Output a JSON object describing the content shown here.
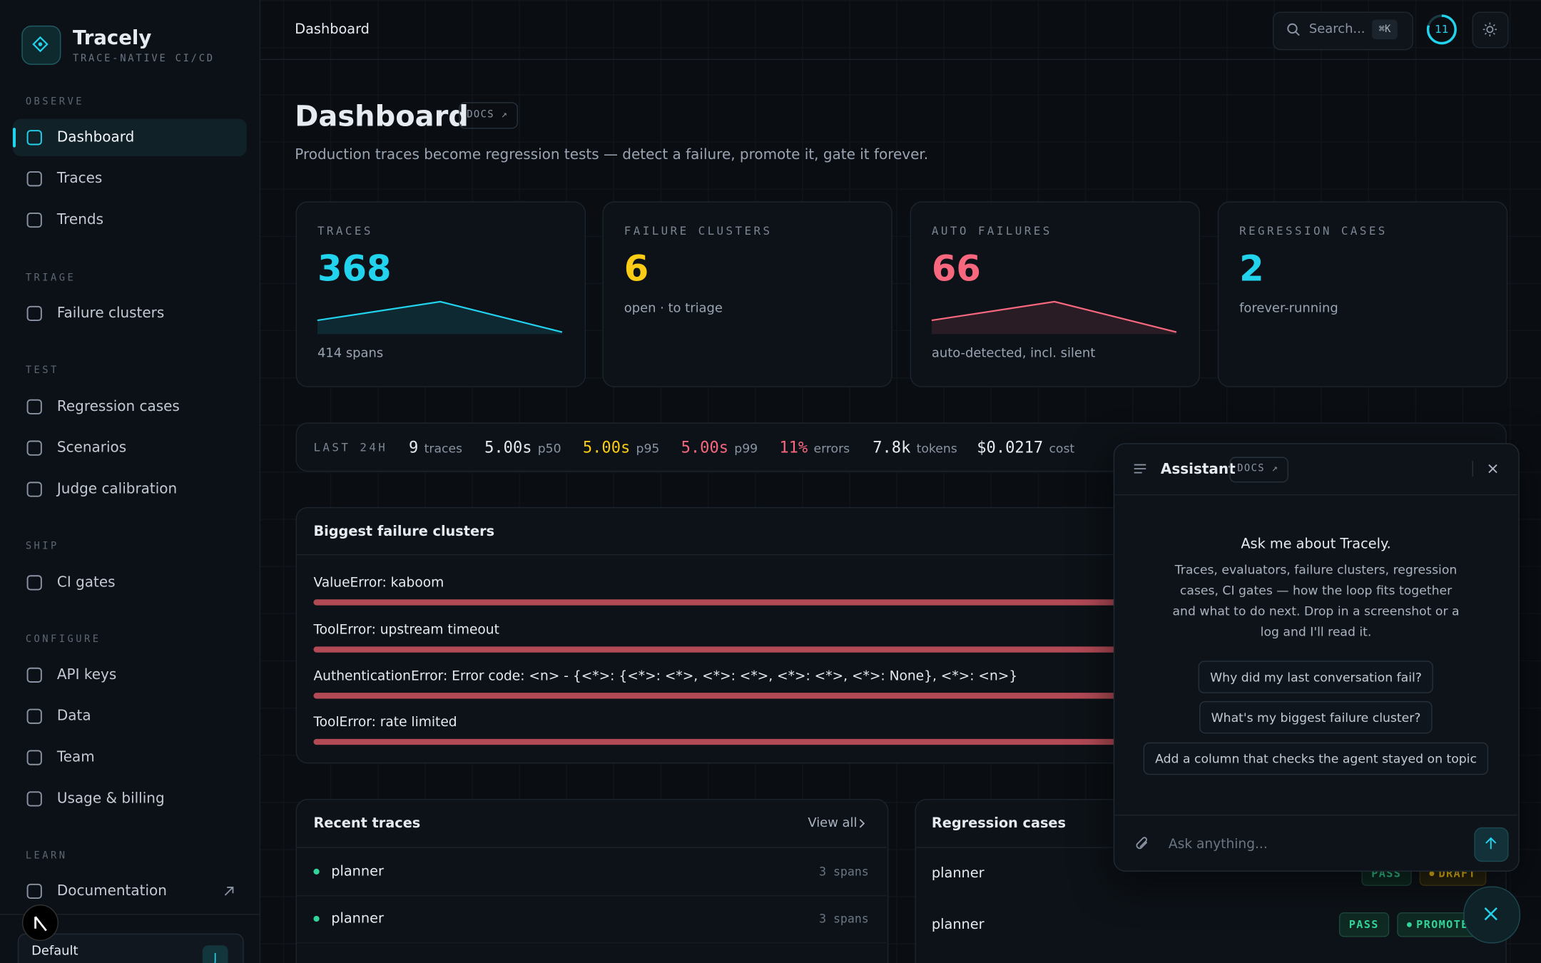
{
  "sidebar": {
    "brand": "Tracely",
    "tagline": "TRACE-NATIVE CI/CD",
    "sections": [
      {
        "title": "OBSERVE",
        "items": [
          {
            "label": "Dashboard",
            "active": true
          },
          {
            "label": "Traces"
          },
          {
            "label": "Trends"
          }
        ]
      },
      {
        "title": "TRIAGE",
        "items": [
          {
            "label": "Failure clusters"
          }
        ]
      },
      {
        "title": "TEST",
        "items": [
          {
            "label": "Regression cases"
          },
          {
            "label": "Scenarios"
          },
          {
            "label": "Judge calibration"
          }
        ]
      },
      {
        "title": "SHIP",
        "items": [
          {
            "label": "CI gates"
          }
        ]
      },
      {
        "title": "CONFIGURE",
        "items": [
          {
            "label": "API keys"
          },
          {
            "label": "Data"
          },
          {
            "label": "Team"
          },
          {
            "label": "Usage & billing"
          }
        ]
      },
      {
        "title": "LEARN",
        "items": [
          {
            "label": "Documentation",
            "external": true
          }
        ]
      }
    ],
    "workspace": "Default",
    "avatar": "J"
  },
  "topbar": {
    "breadcrumb": "Dashboard",
    "search": "Search...",
    "shortcut": "⌘K",
    "badge": "11"
  },
  "header": {
    "title": "Dashboard",
    "docs": "DOCS ↗",
    "subtitle": "Production traces become regression tests — detect a failure, promote it, gate it forever."
  },
  "cards": [
    {
      "label": "TRACES",
      "value": 368,
      "caption": "414 spans",
      "color": "#22d3ee",
      "sparkline": true
    },
    {
      "label": "FAILURE CLUSTERS",
      "value": 6,
      "caption": "open · to triage",
      "color": "#facc15",
      "sparkline": false
    },
    {
      "label": "AUTO FAILURES",
      "value": 66,
      "caption": "auto-detected, incl. silent",
      "color": "#f7687e",
      "sparkline": true
    },
    {
      "label": "REGRESSION CASES",
      "value": 2,
      "caption": "forever-running",
      "color": "#22d3ee",
      "sparkline": false
    }
  ],
  "stats": {
    "label": "LAST 24H",
    "items": [
      {
        "value": "9",
        "label": "traces",
        "color": "#e6ebf2"
      },
      {
        "value": "5.00s",
        "label": "p50",
        "color": "#e6ebf2"
      },
      {
        "value": "5.00s",
        "label": "p95",
        "color": "#facc15"
      },
      {
        "value": "5.00s",
        "label": "p99",
        "color": "#f7687e"
      },
      {
        "value": "11%",
        "label": "errors",
        "color": "#f7687e"
      },
      {
        "value": "7.8k",
        "label": "tokens",
        "color": "#e6ebf2"
      },
      {
        "value": "$0.0217",
        "label": "cost",
        "color": "#e6ebf2"
      }
    ]
  },
  "clusters": {
    "title": "Biggest failure clusters",
    "items": [
      "ValueError: kaboom",
      "ToolError: upstream timeout",
      "AuthenticationError: Error code: <n> - {<*>: {<*>: <*>, <*>: <*>, <*>: <*>, <*>: None}, <*>: <n>}",
      "ToolError: rate limited"
    ]
  },
  "recent_traces": {
    "title": "Recent traces",
    "link": "View all",
    "rows": [
      {
        "name": "planner",
        "spans": "3 spans"
      },
      {
        "name": "planner",
        "spans": "3 spans"
      }
    ]
  },
  "regression_cases": {
    "title": "Regression cases",
    "rows": [
      {
        "name": "planner",
        "badges": [
          "PASS",
          "DRAFT"
        ]
      },
      {
        "name": "planner",
        "badges": [
          "PASS",
          "PROMOTED"
        ]
      }
    ]
  },
  "assistant": {
    "title": "Assistant",
    "docs": "DOCS ↗",
    "heading": "Ask me about Tracely.",
    "body": "Traces, evaluators, failure clusters, regression cases, CI gates — how the loop fits together and what to do next. Drop in a screenshot or a log and I'll read it.",
    "suggestions": [
      "Why did my last conversation fail?",
      "What's my biggest failure cluster?",
      "Add a column that checks the agent stayed on topic"
    ],
    "placeholder": "Ask anything..."
  }
}
